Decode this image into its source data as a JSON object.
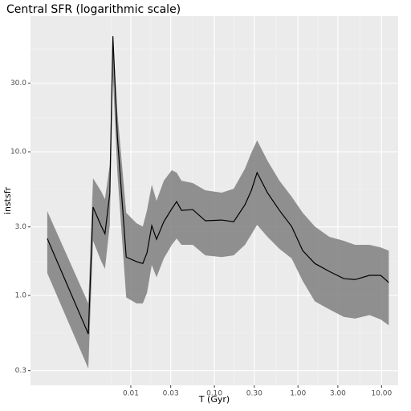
{
  "chart_data": {
    "type": "line",
    "title": "Central SFR (logarithmic scale)",
    "xlabel": "T (Gyr)",
    "ylabel": "instsfr",
    "log_x": true,
    "log_y": true,
    "grid": true,
    "line_color": "#000000",
    "band_color": "#7f7f7f",
    "xlim": [
      0.00063,
      15.8
    ],
    "ylim": [
      0.237,
      88
    ],
    "xticks": [
      0.01,
      0.03,
      {
        "value": 0.1,
        "label": "0.10"
      },
      {
        "value": 0.3,
        "label": "0.30"
      },
      {
        "value": 1,
        "label": "1.00"
      },
      {
        "value": 3,
        "label": "3.00"
      },
      {
        "value": 10,
        "label": "10.00"
      }
    ],
    "yticks": [
      0.3,
      {
        "value": 1,
        "label": "1.0"
      },
      {
        "value": 3,
        "label": "3.0"
      },
      {
        "value": 10,
        "label": "10.0"
      },
      {
        "value": 30,
        "label": "30.0"
      }
    ],
    "x": [
      0.001,
      0.0031,
      0.00353,
      0.0044,
      0.0049,
      0.0056,
      0.0061,
      0.0069,
      0.0088,
      0.0117,
      0.0139,
      0.0156,
      0.0178,
      0.0203,
      0.0248,
      0.0309,
      0.0353,
      0.0404,
      0.055,
      0.078,
      0.122,
      0.17,
      0.232,
      0.277,
      0.324,
      0.431,
      0.6,
      0.84,
      1.14,
      1.59,
      2.37,
      3.53,
      4.82,
      7.18,
      9.77,
      12.2
    ],
    "values": [
      2.49,
      0.54,
      4.12,
      3.06,
      2.69,
      5.12,
      63.7,
      12.8,
      1.85,
      1.72,
      1.67,
      1.98,
      3.06,
      2.46,
      3.26,
      4.01,
      4.5,
      3.91,
      3.96,
      3.31,
      3.35,
      3.26,
      4.28,
      5.39,
      7.16,
      5.19,
      3.91,
      3.02,
      2.05,
      1.67,
      1.47,
      1.31,
      1.29,
      1.38,
      1.38,
      1.23
    ],
    "lower": [
      1.43,
      0.31,
      2.4,
      1.74,
      1.53,
      3.1,
      33.5,
      7.16,
      0.97,
      0.88,
      0.88,
      1.04,
      1.63,
      1.34,
      1.81,
      2.25,
      2.49,
      2.25,
      2.25,
      1.9,
      1.85,
      1.9,
      2.25,
      2.66,
      3.1,
      2.56,
      2.11,
      1.81,
      1.26,
      0.91,
      0.8,
      0.71,
      0.69,
      0.73,
      0.68,
      0.62
    ],
    "upper": [
      3.86,
      0.88,
      6.54,
      5.32,
      4.68,
      8.14,
      65.5,
      18.8,
      3.76,
      3.18,
      3.02,
      3.91,
      5.9,
      4.56,
      6.29,
      7.44,
      7.16,
      6.29,
      6.06,
      5.39,
      5.19,
      5.53,
      7.63,
      9.87,
      12.0,
      8.68,
      6.29,
      4.87,
      3.76,
      3.02,
      2.56,
      2.4,
      2.25,
      2.25,
      2.16,
      2.05
    ]
  }
}
